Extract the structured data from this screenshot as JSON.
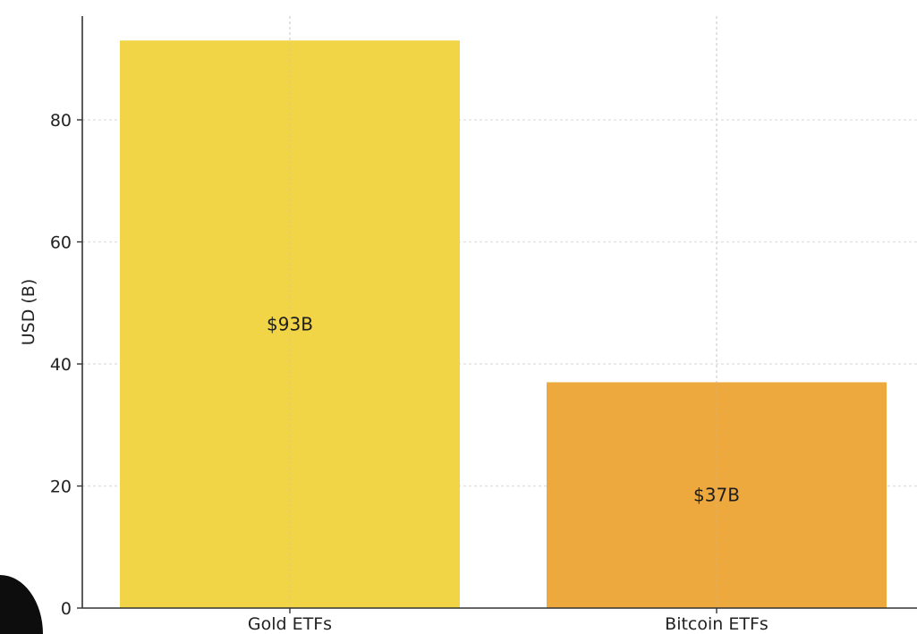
{
  "chart_data": {
    "type": "bar",
    "categories": [
      "Gold ETFs",
      "Bitcoin ETFs"
    ],
    "values": [
      93,
      37
    ],
    "value_labels": [
      "$93B",
      "$37B"
    ],
    "title": "",
    "xlabel": "",
    "ylabel": "USD (B)",
    "ylim": [
      0,
      97
    ],
    "yticks": [
      0,
      20,
      40,
      60,
      80
    ],
    "grid": true,
    "colors": [
      "#f2d546",
      "#eda93d"
    ]
  }
}
